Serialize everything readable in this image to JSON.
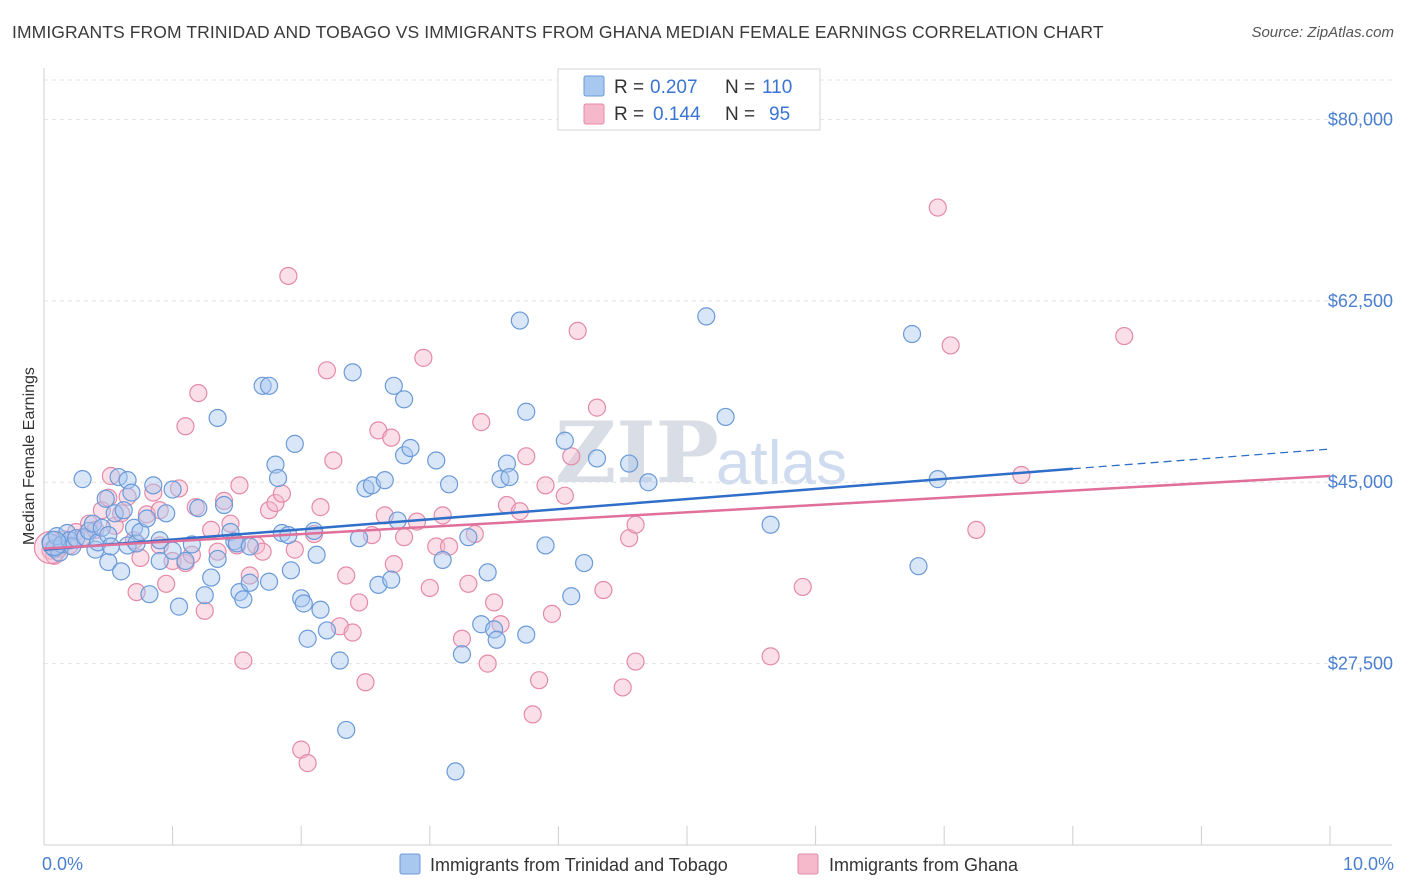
{
  "title": "IMMIGRANTS FROM TRINIDAD AND TOBAGO VS IMMIGRANTS FROM GHANA MEDIAN FEMALE EARNINGS CORRELATION CHART",
  "source": "Source: ZipAtlas.com",
  "watermark": {
    "part1": "ZIP",
    "part2": "atlas"
  },
  "stats": {
    "blue": {
      "r_label": "R =",
      "r_value": "0.207",
      "n_label": "N =",
      "n_value": "110"
    },
    "pink": {
      "r_label": "R =",
      "r_value": "0.144",
      "n_label": "N =",
      "n_value": "95"
    }
  },
  "colors": {
    "blue_fill": "#a9c8f0",
    "blue_stroke": "#6b9ad8",
    "blue_line": "#2f6fc9",
    "pink_fill": "#f6b9cc",
    "pink_stroke": "#e48aa8",
    "pink_line": "#e0709a",
    "tick_text": "#4a7fd0"
  },
  "chart_data": {
    "type": "scatter",
    "title": "IMMIGRANTS FROM TRINIDAD AND TOBAGO VS IMMIGRANTS FROM GHANA MEDIAN FEMALE EARNINGS CORRELATION CHART",
    "xlabel": "",
    "ylabel": "Median Female Earnings",
    "xlim": [
      0,
      10
    ],
    "ylim": [
      10000,
      84000
    ],
    "x_tick_labels": [
      "0.0%",
      "10.0%"
    ],
    "y_ticks": [
      27500,
      45000,
      62500,
      80000
    ],
    "y_tick_labels": [
      "$27,500",
      "$45,000",
      "$62,500",
      "$80,000"
    ],
    "grid": true,
    "legend_position": "bottom-center",
    "series": [
      {
        "name": "Immigrants from Trinidad and Tobago",
        "color": "#a9c8f0",
        "trend": {
          "x": [
            0,
            8
          ],
          "y": [
            38500,
            46300
          ],
          "dashed_to": [
            10,
            48200
          ]
        },
        "points": [
          [
            0.05,
            39200
          ],
          [
            0.08,
            38600
          ],
          [
            0.1,
            39800
          ],
          [
            0.12,
            38200
          ],
          [
            0.14,
            39000
          ],
          [
            0.18,
            40100
          ],
          [
            0.2,
            39400
          ],
          [
            0.22,
            38800
          ],
          [
            0.25,
            39600
          ],
          [
            0.3,
            45300
          ],
          [
            0.32,
            39700
          ],
          [
            0.35,
            40300
          ],
          [
            0.38,
            41000
          ],
          [
            0.4,
            38500
          ],
          [
            0.42,
            39200
          ],
          [
            0.45,
            40600
          ],
          [
            0.48,
            43400
          ],
          [
            0.5,
            39900
          ],
          [
            0.5,
            37300
          ],
          [
            0.52,
            38800
          ],
          [
            0.55,
            42000
          ],
          [
            0.58,
            45500
          ],
          [
            0.6,
            36400
          ],
          [
            0.62,
            42300
          ],
          [
            0.65,
            38900
          ],
          [
            0.65,
            45200
          ],
          [
            0.68,
            44000
          ],
          [
            0.7,
            40600
          ],
          [
            0.72,
            39100
          ],
          [
            0.75,
            40200
          ],
          [
            0.8,
            41500
          ],
          [
            0.82,
            34200
          ],
          [
            0.85,
            44700
          ],
          [
            0.9,
            39400
          ],
          [
            0.9,
            37400
          ],
          [
            0.95,
            42000
          ],
          [
            1.0,
            44300
          ],
          [
            1.0,
            38400
          ],
          [
            1.05,
            33000
          ],
          [
            1.1,
            37400
          ],
          [
            1.15,
            39000
          ],
          [
            1.2,
            42500
          ],
          [
            1.25,
            34100
          ],
          [
            1.3,
            35800
          ],
          [
            1.35,
            37600
          ],
          [
            1.35,
            51200
          ],
          [
            1.4,
            42800
          ],
          [
            1.45,
            40200
          ],
          [
            1.48,
            39300
          ],
          [
            1.5,
            39100
          ],
          [
            1.52,
            34400
          ],
          [
            1.55,
            33700
          ],
          [
            1.6,
            38800
          ],
          [
            1.6,
            35300
          ],
          [
            1.7,
            54300
          ],
          [
            1.75,
            35400
          ],
          [
            1.75,
            54300
          ],
          [
            1.8,
            46700
          ],
          [
            1.82,
            45400
          ],
          [
            1.85,
            40100
          ],
          [
            1.9,
            39900
          ],
          [
            1.92,
            36500
          ],
          [
            1.95,
            48700
          ],
          [
            2.0,
            33800
          ],
          [
            2.02,
            33300
          ],
          [
            2.05,
            29900
          ],
          [
            2.1,
            40300
          ],
          [
            2.12,
            38000
          ],
          [
            2.15,
            32700
          ],
          [
            2.2,
            30700
          ],
          [
            2.3,
            27800
          ],
          [
            2.35,
            21100
          ],
          [
            2.4,
            55600
          ],
          [
            2.45,
            39600
          ],
          [
            2.5,
            44400
          ],
          [
            2.55,
            44700
          ],
          [
            2.6,
            35100
          ],
          [
            2.65,
            45200
          ],
          [
            2.7,
            35600
          ],
          [
            2.72,
            54300
          ],
          [
            2.8,
            53000
          ],
          [
            2.75,
            41300
          ],
          [
            2.8,
            47600
          ],
          [
            2.85,
            48300
          ],
          [
            3.05,
            47100
          ],
          [
            3.1,
            37500
          ],
          [
            3.15,
            44800
          ],
          [
            3.2,
            17100
          ],
          [
            3.25,
            28400
          ],
          [
            3.3,
            39700
          ],
          [
            3.4,
            31300
          ],
          [
            3.45,
            36300
          ],
          [
            3.5,
            30800
          ],
          [
            3.52,
            29800
          ],
          [
            3.55,
            45300
          ],
          [
            3.6,
            46800
          ],
          [
            3.62,
            45500
          ],
          [
            3.7,
            60600
          ],
          [
            3.75,
            51800
          ],
          [
            3.75,
            30300
          ],
          [
            3.9,
            38900
          ],
          [
            4.05,
            49000
          ],
          [
            4.1,
            34000
          ],
          [
            4.2,
            37200
          ],
          [
            4.3,
            47300
          ],
          [
            4.55,
            46800
          ],
          [
            4.7,
            45000
          ],
          [
            5.15,
            61000
          ],
          [
            5.3,
            51300
          ],
          [
            5.65,
            40900
          ],
          [
            6.75,
            59300
          ],
          [
            6.8,
            36900
          ],
          [
            6.95,
            45300
          ]
        ]
      },
      {
        "name": "Immigrants from Ghana",
        "color": "#f6b9cc",
        "trend": {
          "x": [
            0,
            10
          ],
          "y": [
            38600,
            45600
          ]
        },
        "points": [
          [
            0.05,
            38400
          ],
          [
            0.08,
            37900
          ],
          [
            0.1,
            39100
          ],
          [
            0.12,
            38600
          ],
          [
            0.15,
            39500
          ],
          [
            0.2,
            38900
          ],
          [
            0.25,
            40200
          ],
          [
            0.3,
            39700
          ],
          [
            0.35,
            41000
          ],
          [
            0.4,
            40400
          ],
          [
            0.45,
            42300
          ],
          [
            0.5,
            43500
          ],
          [
            0.52,
            45600
          ],
          [
            0.55,
            40800
          ],
          [
            0.6,
            42000
          ],
          [
            0.65,
            43600
          ],
          [
            0.7,
            39400
          ],
          [
            0.72,
            34400
          ],
          [
            0.75,
            37700
          ],
          [
            0.8,
            41900
          ],
          [
            0.85,
            44000
          ],
          [
            0.9,
            42300
          ],
          [
            0.9,
            38900
          ],
          [
            0.95,
            35200
          ],
          [
            1.0,
            37400
          ],
          [
            1.05,
            44400
          ],
          [
            1.1,
            37200
          ],
          [
            1.1,
            50400
          ],
          [
            1.15,
            38000
          ],
          [
            1.18,
            42600
          ],
          [
            1.2,
            53600
          ],
          [
            1.25,
            32600
          ],
          [
            1.3,
            40400
          ],
          [
            1.35,
            38300
          ],
          [
            1.4,
            43200
          ],
          [
            1.45,
            41000
          ],
          [
            1.5,
            38900
          ],
          [
            1.52,
            44700
          ],
          [
            1.55,
            27800
          ],
          [
            1.6,
            36000
          ],
          [
            1.65,
            38900
          ],
          [
            1.7,
            38300
          ],
          [
            1.75,
            42300
          ],
          [
            1.8,
            43000
          ],
          [
            1.85,
            43900
          ],
          [
            1.9,
            64900
          ],
          [
            1.95,
            38500
          ],
          [
            2.0,
            19200
          ],
          [
            2.05,
            17900
          ],
          [
            2.1,
            40000
          ],
          [
            2.15,
            42600
          ],
          [
            2.2,
            55800
          ],
          [
            2.25,
            47100
          ],
          [
            2.3,
            31100
          ],
          [
            2.35,
            36000
          ],
          [
            2.4,
            30500
          ],
          [
            2.45,
            33400
          ],
          [
            2.5,
            25700
          ],
          [
            2.55,
            39900
          ],
          [
            2.6,
            50000
          ],
          [
            2.65,
            41800
          ],
          [
            2.7,
            49300
          ],
          [
            2.72,
            37100
          ],
          [
            2.8,
            39700
          ],
          [
            2.9,
            41200
          ],
          [
            2.95,
            57000
          ],
          [
            3.0,
            34800
          ],
          [
            3.05,
            38800
          ],
          [
            3.1,
            41800
          ],
          [
            3.15,
            38800
          ],
          [
            3.25,
            29900
          ],
          [
            3.3,
            35200
          ],
          [
            3.35,
            40000
          ],
          [
            3.4,
            50800
          ],
          [
            3.45,
            27500
          ],
          [
            3.5,
            33400
          ],
          [
            3.55,
            31300
          ],
          [
            3.6,
            42800
          ],
          [
            3.7,
            42200
          ],
          [
            3.75,
            47500
          ],
          [
            3.8,
            22600
          ],
          [
            3.85,
            25900
          ],
          [
            3.9,
            44700
          ],
          [
            3.95,
            32300
          ],
          [
            4.05,
            43700
          ],
          [
            4.1,
            47500
          ],
          [
            4.15,
            59600
          ],
          [
            4.3,
            52200
          ],
          [
            4.35,
            34600
          ],
          [
            4.5,
            25200
          ],
          [
            4.55,
            39600
          ],
          [
            4.6,
            40900
          ],
          [
            4.6,
            27700
          ],
          [
            5.65,
            28200
          ],
          [
            5.9,
            34900
          ],
          [
            6.95,
            71500
          ],
          [
            7.05,
            58200
          ],
          [
            7.25,
            40400
          ],
          [
            7.6,
            45700
          ],
          [
            8.4,
            59100
          ]
        ]
      }
    ]
  },
  "legend": {
    "blue_label": "Immigrants from Trinidad and Tobago",
    "pink_label": "Immigrants from Ghana"
  }
}
